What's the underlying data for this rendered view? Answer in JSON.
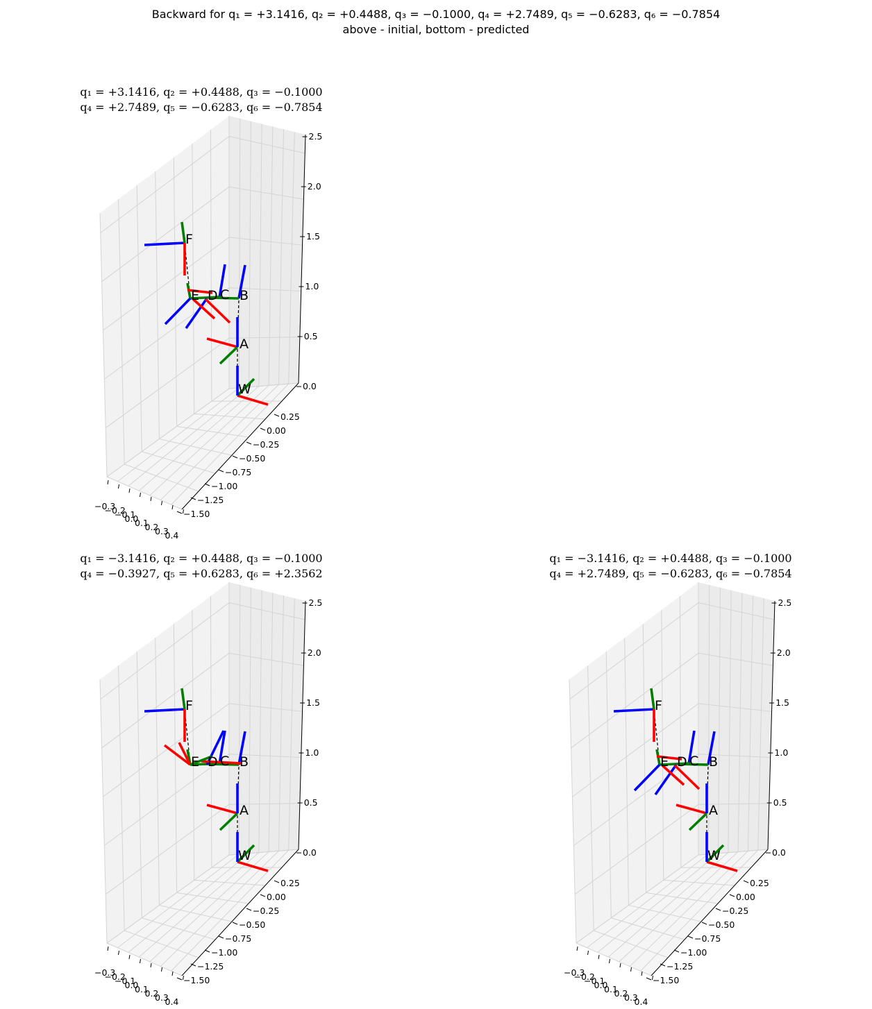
{
  "figure": {
    "title_line1": "Backward for q₁ = +3.1416, q₂ = +0.4488, q₃ = −0.1000, q₄ = +2.7489, q₅ = −0.6283, q₆ = −0.7854",
    "title_line2": "above - initial, bottom - predicted"
  },
  "axes": {
    "z_ticks": [
      "2.5",
      "2.0",
      "1.5",
      "1.0",
      "0.5",
      "0.0"
    ],
    "y_ticks": [
      "0.25",
      "0.00",
      "−0.25",
      "−0.50",
      "−0.75",
      "−1.00",
      "−1.25",
      "−1.50"
    ],
    "x_ticks": [
      "−0.3",
      "−0.2",
      "−0.1",
      "0.0",
      "0.1",
      "0.2",
      "0.3",
      "0.4"
    ]
  },
  "colors": {
    "x_axis": "#ff0000",
    "y_axis": "#008000",
    "z_axis": "#0000ff",
    "link": "#000000"
  },
  "chart_data": [
    {
      "type": "diagram-3d",
      "title_line1": "q₁ = +3.1416, q₂ = +0.4488, q₃ = −0.1000",
      "title_line2": "q₄ = +2.7489, q₅ = −0.6283, q₆ = −0.7854",
      "joints": [
        "W",
        "A",
        "B",
        "C",
        "D",
        "E",
        "F"
      ],
      "variant": "initial"
    },
    {
      "type": "diagram-3d",
      "title_line1": "q₁ = −3.1416, q₂ = +0.4488, q₃ = −0.1000",
      "title_line2": "q₄ = −0.3927, q₅ = +0.6283, q₆ = +2.3562",
      "joints": [
        "W",
        "A",
        "B",
        "C",
        "D",
        "E",
        "F"
      ],
      "variant": "predicted-1"
    },
    {
      "type": "diagram-3d",
      "title_line1": "q₁ = −3.1416, q₂ = +0.4488, q₃ = −0.1000",
      "title_line2": "q₄ = +2.7489, q₅ = −0.6283, q₆ = −0.7854",
      "joints": [
        "W",
        "A",
        "B",
        "C",
        "D",
        "E",
        "F"
      ],
      "variant": "predicted-2"
    }
  ]
}
